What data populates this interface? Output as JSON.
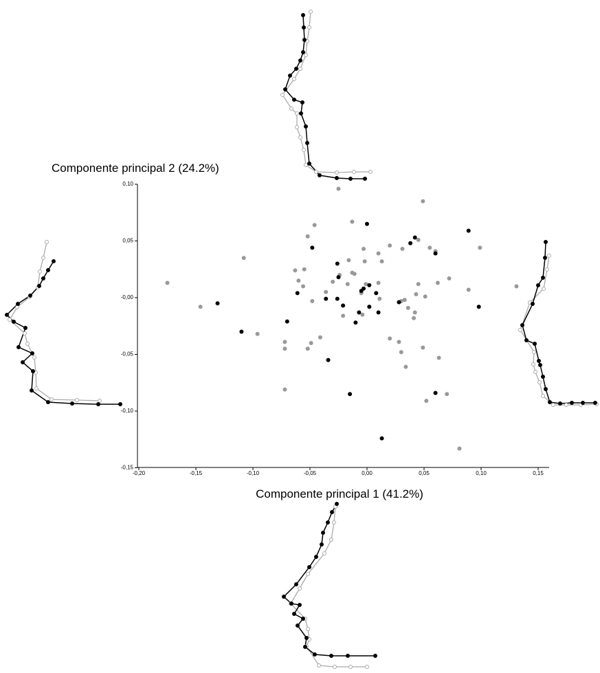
{
  "chart_data": {
    "type": "scatter",
    "x_label": "Componente principal 1 (41.2%)",
    "y_label": "Componente principal 2 (24.2%)",
    "xlim": [
      -0.2,
      0.16
    ],
    "ylim": [
      -0.15,
      0.1
    ],
    "xticks": [
      {
        "value": -0.2,
        "label": "-0,20"
      },
      {
        "value": -0.15,
        "label": "-0,15"
      },
      {
        "value": -0.1,
        "label": "-0,10"
      },
      {
        "value": -0.05,
        "label": "-0,05"
      },
      {
        "value": 0,
        "label": "0,00"
      },
      {
        "value": 0.05,
        "label": "0,05"
      },
      {
        "value": 0.1,
        "label": "0,10"
      },
      {
        "value": 0.15,
        "label": "0,15"
      }
    ],
    "yticks": [
      {
        "value": -0.15,
        "label": "-0,15"
      },
      {
        "value": -0.1,
        "label": "-0,10"
      },
      {
        "value": -0.05,
        "label": "-0,05"
      },
      {
        "value": 0,
        "label": "-0,00"
      },
      {
        "value": 0.05,
        "label": "0,05"
      },
      {
        "value": 0.1,
        "label": "0,10"
      }
    ],
    "series": [
      {
        "color": "#999999",
        "x": [
          -0.175,
          -0.146,
          -0.108,
          -0.096,
          -0.072,
          -0.072,
          -0.072,
          -0.052,
          -0.046,
          -0.055,
          -0.063,
          -0.06,
          -0.056,
          -0.048,
          -0.052,
          -0.049,
          -0.041,
          -0.036,
          -0.03,
          -0.025,
          -0.024,
          -0.017,
          -0.021,
          -0.021,
          -0.013,
          -0.016,
          -0.013,
          -0.011,
          -0.003,
          -0.002,
          -0.001,
          -0.005,
          -0.004,
          0.01,
          0.013,
          0.01,
          0.011,
          0.02,
          0.02,
          0.028,
          0.03,
          0.03,
          0.031,
          0.033,
          0.034,
          0.036,
          0.041,
          0.042,
          0.043,
          0.045,
          0.045,
          0.049,
          0.049,
          0.051,
          0.055,
          0.052,
          0.06,
          0.062,
          0.063,
          0.072,
          0.07,
          0.089,
          0.099,
          0.131,
          0.081
        ],
        "values": [
          0.013,
          -0.008,
          0.035,
          -0.032,
          -0.039,
          -0.045,
          -0.081,
          0.054,
          0.064,
          0.025,
          0.024,
          0.015,
          0.01,
          -0.003,
          -0.045,
          -0.04,
          -0.035,
          0.005,
          0.014,
          0.096,
          0.02,
          0.012,
          -0.007,
          -0.016,
          0.067,
          0.033,
          0.022,
          0.021,
          0.043,
          0.032,
          0.012,
          0.004,
          -0.015,
          0.039,
          0.032,
          0.013,
          -0.001,
          0.046,
          -0.036,
          -0.039,
          -0.048,
          -0.003,
          0.043,
          -0.002,
          -0.061,
          -0.009,
          -0.018,
          -0.013,
          0.003,
          0.012,
          0.051,
          0.085,
          -0.044,
          0.001,
          0.044,
          -0.091,
          0.041,
          0.013,
          -0.053,
          0.017,
          -0.085,
          0.007,
          0.044,
          0.01,
          -0.133
        ]
      },
      {
        "color": "#000000",
        "x": [
          -0.131,
          -0.11,
          -0.07,
          -0.061,
          -0.048,
          -0.034,
          -0.036,
          -0.026,
          -0.025,
          -0.026,
          -0.021,
          -0.015,
          -0.01,
          -0.007,
          -0.005,
          -0.003,
          0.0,
          0.002,
          0.002,
          0.008,
          0.01,
          0.013,
          0.028,
          0.038,
          0.042,
          0.06,
          0.06,
          0.089,
          0.098
        ],
        "values": [
          -0.005,
          -0.03,
          -0.021,
          0.004,
          0.044,
          -0.055,
          -0.001,
          0.03,
          0.018,
          -0.001,
          -0.007,
          -0.085,
          -0.022,
          -0.013,
          0.006,
          0.008,
          0.065,
          0.011,
          -0.008,
          0.004,
          -0.013,
          -0.124,
          -0.004,
          0.048,
          0.053,
          0.039,
          -0.084,
          0.059,
          -0.008
        ]
      }
    ]
  }
}
